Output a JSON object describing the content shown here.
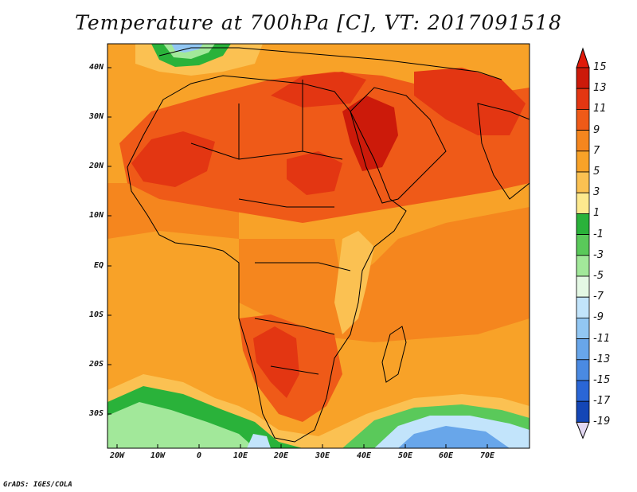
{
  "title": "Temperature at 700hPa [C], VT: 2017091518",
  "credit": "GrADS: IGES/COLA",
  "lat_labels": [
    "40N",
    "30N",
    "20N",
    "10N",
    "EQ",
    "10S",
    "20S",
    "30S"
  ],
  "lon_labels": [
    "20W",
    "10W",
    "0",
    "10E",
    "20E",
    "30E",
    "40E",
    "50E",
    "60E",
    "70E"
  ],
  "colorbar": {
    "labels": [
      "15",
      "13",
      "11",
      "9",
      "7",
      "5",
      "3",
      "1",
      "-1",
      "-3",
      "-5",
      "-7",
      "-9",
      "-11",
      "-13",
      "-15",
      "-17",
      "-19"
    ],
    "colors": [
      "#cc1a0a",
      "#e33612",
      "#ef5a18",
      "#f5861e",
      "#f8a228",
      "#fbc152",
      "#fde98e",
      "#2ab23a",
      "#5ac95a",
      "#a2e89a",
      "#e4f8e4",
      "#c2e4fb",
      "#92c7f3",
      "#68a6ea",
      "#4a8ae2",
      "#2a66d6",
      "#1446b6",
      "#0a2380",
      "#e2d8f2"
    ],
    "top_triangle": "#e01a0a",
    "bottom_triangle": "#e2d8f2"
  },
  "palette": {
    "hot": "#e33612",
    "warm": "#ef5a18",
    "mid": "#f5861e",
    "mild": "#f8a228",
    "cool": "#fbc152",
    "green": "#2ab23a",
    "lightgreen": "#a2e89a",
    "blue": "#68a6ea",
    "lightblue": "#c2e4fb"
  }
}
